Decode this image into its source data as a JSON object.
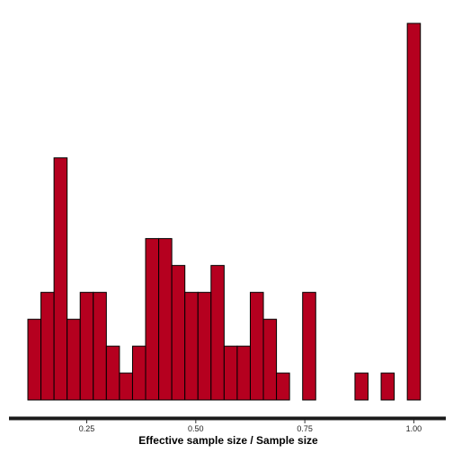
{
  "chart_data": {
    "type": "bar",
    "subtype": "histogram",
    "xlabel": "Effective sample size / Sample size",
    "ylabel": "",
    "title": "",
    "x_ticks": [
      0.25,
      0.5,
      0.75,
      1.0
    ],
    "x_tick_labels": [
      "0.25",
      "0.50",
      "0.75",
      "1.00"
    ],
    "xlim": [
      0.115,
      1.03
    ],
    "bin_width": 0.03,
    "bin_start": 0.115,
    "counts": [
      3,
      4,
      9,
      3,
      4,
      4,
      2,
      1,
      2,
      6,
      6,
      5,
      4,
      4,
      5,
      2,
      2,
      4,
      3,
      1,
      0,
      4,
      0,
      0,
      0,
      1,
      0,
      1,
      0,
      14
    ],
    "ylim": [
      0,
      14
    ],
    "grid": false,
    "colors": {
      "bar_fill": "#b5001f",
      "bar_stroke": "#000000",
      "axis_line": "#1a1a1a"
    }
  }
}
